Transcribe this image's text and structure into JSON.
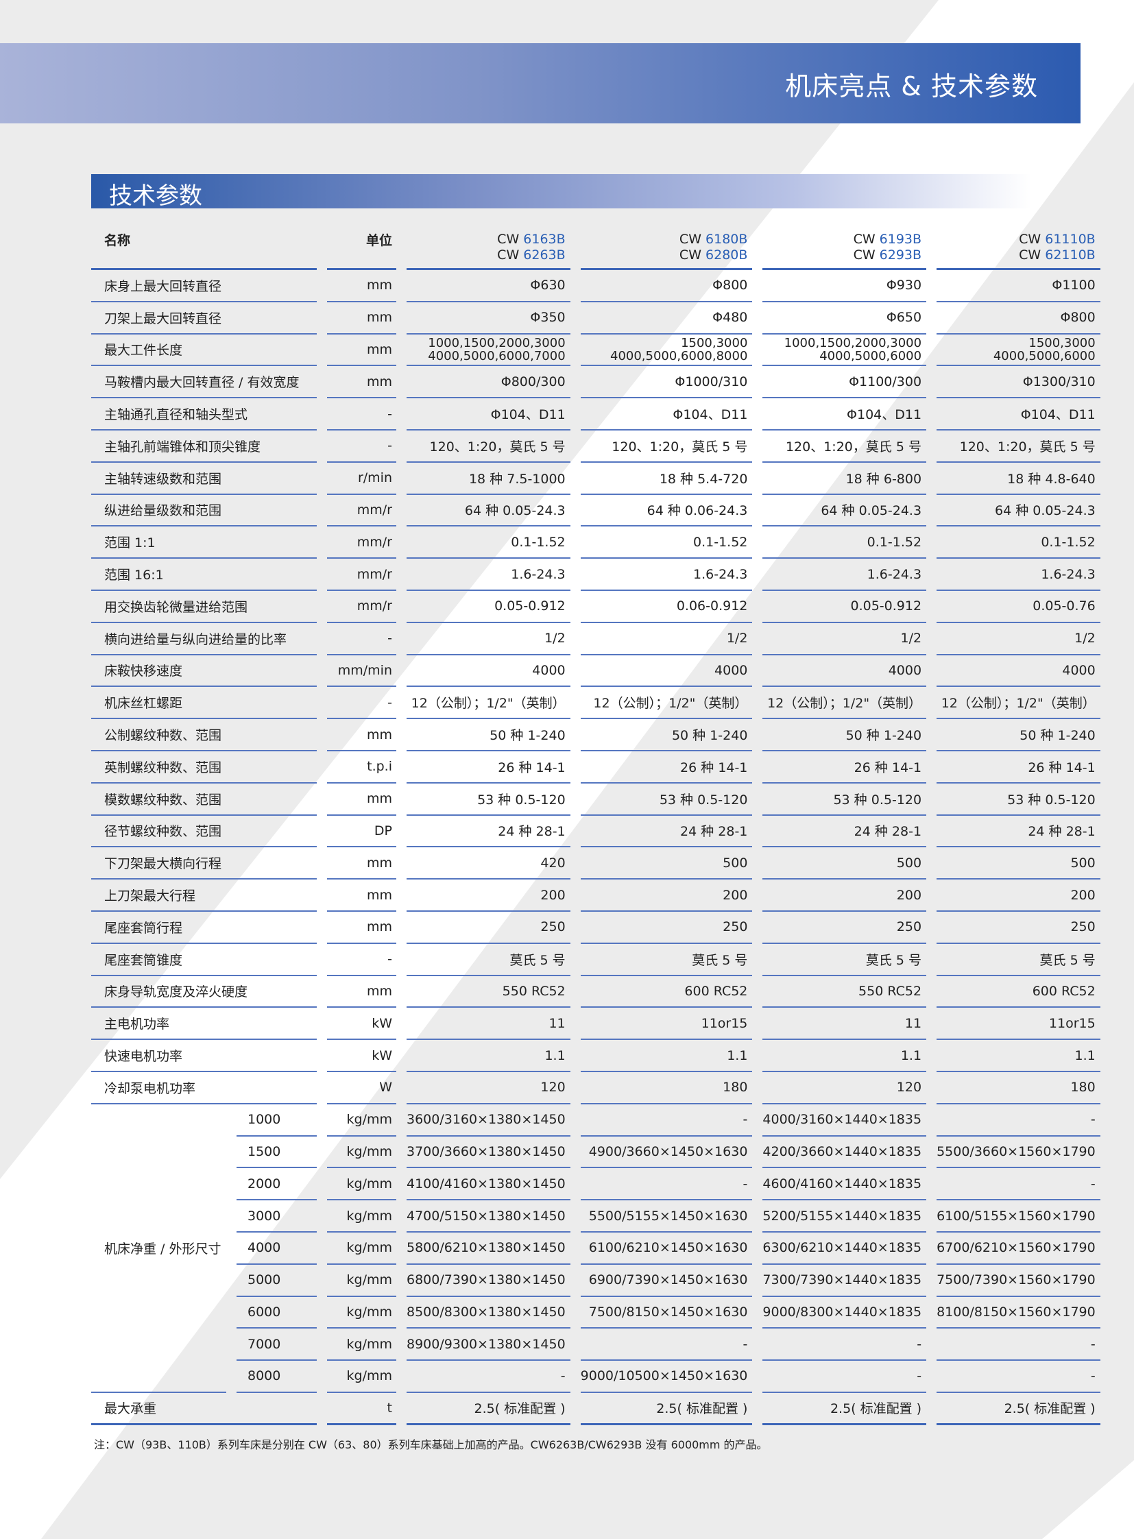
{
  "header": {
    "title": "机床亮点 & 技术参数"
  },
  "section": {
    "title": "技术参数"
  },
  "table": {
    "head": {
      "name": "名称",
      "unit": "单位",
      "models": [
        {
          "l1p": "CW ",
          "l1n": "6163B",
          "l2p": "CW ",
          "l2n": "6263B"
        },
        {
          "l1p": "CW ",
          "l1n": "6180B",
          "l2p": "CW ",
          "l2n": "6280B"
        },
        {
          "l1p": "CW ",
          "l1n": "6193B",
          "l2p": "CW ",
          "l2n": "6293B"
        },
        {
          "l1p": "CW ",
          "l1n": "61110B",
          "l2p": "CW ",
          "l2n": "62110B"
        }
      ]
    },
    "rows": [
      {
        "name": "床身上最大回转直径",
        "unit": "mm",
        "v": [
          "Φ630",
          "Φ800",
          "Φ930",
          "Φ1100"
        ]
      },
      {
        "name": "刀架上最大回转直径",
        "unit": "mm",
        "v": [
          "Φ350",
          "Φ480",
          "Φ650",
          "Φ800"
        ]
      },
      {
        "name": "最大工件长度",
        "unit": "mm",
        "v": [
          [
            "1000,1500,2000,3000",
            "4000,5000,6000,7000"
          ],
          [
            "1500,3000",
            "4000,5000,6000,8000"
          ],
          [
            "1000,1500,2000,3000",
            "4000,5000,6000"
          ],
          [
            "1500,3000",
            "4000,5000,6000"
          ]
        ]
      },
      {
        "name": "马鞍槽内最大回转直径 / 有效宽度",
        "unit": "mm",
        "v": [
          "Φ800/300",
          "Φ1000/310",
          "Φ1100/300",
          "Φ1300/310"
        ]
      },
      {
        "name": "主轴通孔直径和轴头型式",
        "unit": "-",
        "v": [
          "Φ104、D11",
          "Φ104、D11",
          "Φ104、D11",
          "Φ104、D11"
        ]
      },
      {
        "name": "主轴孔前端锥体和顶尖锥度",
        "unit": "-",
        "v": [
          "120、1:20，莫氏 5 号",
          "120、1:20，莫氏 5 号",
          "120、1:20，莫氏 5 号",
          "120、1:20，莫氏 5 号"
        ]
      },
      {
        "name": "主轴转速级数和范围",
        "unit": "r/min",
        "v": [
          "18 种 7.5-1000",
          "18 种 5.4-720",
          "18 种 6-800",
          "18 种 4.8-640"
        ]
      },
      {
        "name": "纵进给量级数和范围",
        "unit": "mm/r",
        "v": [
          "64 种 0.05-24.3",
          "64 种 0.06-24.3",
          "64 种 0.05-24.3",
          "64 种 0.05-24.3"
        ]
      },
      {
        "name": "范围 1:1",
        "unit": "mm/r",
        "v": [
          "0.1-1.52",
          "0.1-1.52",
          "0.1-1.52",
          "0.1-1.52"
        ]
      },
      {
        "name": "范围 16:1",
        "unit": "mm/r",
        "v": [
          "1.6-24.3",
          "1.6-24.3",
          "1.6-24.3",
          "1.6-24.3"
        ]
      },
      {
        "name": "用交换齿轮微量进给范围",
        "unit": "mm/r",
        "v": [
          "0.05-0.912",
          "0.06-0.912",
          "0.05-0.912",
          "0.05-0.76"
        ]
      },
      {
        "name": "横向进给量与纵向进给量的比率",
        "unit": "-",
        "v": [
          "1/2",
          "1/2",
          "1/2",
          "1/2"
        ]
      },
      {
        "name": "床鞍快移速度",
        "unit": "mm/min",
        "v": [
          "4000",
          "4000",
          "4000",
          "4000"
        ]
      },
      {
        "name": "机床丝杠螺距",
        "unit": "-",
        "v": [
          "12（公制）；1/2\"（英制）",
          "12（公制）；1/2\"（英制）",
          "12（公制）；1/2\"（英制）",
          "12（公制）；1/2\"（英制）"
        ]
      },
      {
        "name": "公制螺纹种数、范围",
        "unit": "mm",
        "v": [
          "50 种 1-240",
          "50 种 1-240",
          "50 种 1-240",
          "50 种 1-240"
        ]
      },
      {
        "name": "英制螺纹种数、范围",
        "unit": "t.p.i",
        "v": [
          "26 种 14-1",
          "26 种 14-1",
          "26 种 14-1",
          "26 种 14-1"
        ]
      },
      {
        "name": "模数螺纹种数、范围",
        "unit": "mm",
        "v": [
          "53 种 0.5-120",
          "53 种 0.5-120",
          "53 种 0.5-120",
          "53 种 0.5-120"
        ]
      },
      {
        "name": "径节螺纹种数、范围",
        "unit": "DP",
        "v": [
          "24 种 28-1",
          "24 种 28-1",
          "24 种 28-1",
          "24 种 28-1"
        ]
      },
      {
        "name": "下刀架最大横向行程",
        "unit": "mm",
        "v": [
          "420",
          "500",
          "500",
          "500"
        ]
      },
      {
        "name": "上刀架最大行程",
        "unit": "mm",
        "v": [
          "200",
          "200",
          "200",
          "200"
        ]
      },
      {
        "name": "尾座套筒行程",
        "unit": "mm",
        "v": [
          "250",
          "250",
          "250",
          "250"
        ]
      },
      {
        "name": "尾座套筒锥度",
        "unit": "-",
        "v": [
          "莫氏 5 号",
          "莫氏 5 号",
          "莫氏 5 号",
          "莫氏 5 号"
        ]
      },
      {
        "name": "床身导轨宽度及淬火硬度",
        "unit": "mm",
        "v": [
          "550 RC52",
          "600 RC52",
          "550 RC52",
          "600 RC52"
        ]
      },
      {
        "name": "主电机功率",
        "unit": "kW",
        "v": [
          "11",
          "11or15",
          "11",
          "11or15"
        ]
      },
      {
        "name": "快速电机功率",
        "unit": "kW",
        "v": [
          "1.1",
          "1.1",
          "1.1",
          "1.1"
        ]
      },
      {
        "name": "冷却泵电机功率",
        "unit": "W",
        "v": [
          "120",
          "180",
          "120",
          "180"
        ]
      }
    ],
    "weight": {
      "name": "机床净重 / 外形尺寸",
      "rows": [
        {
          "len": "1000",
          "unit": "kg/mm",
          "v": [
            "3600/3160×1380×1450",
            "-",
            "4000/3160×1440×1835",
            "-"
          ]
        },
        {
          "len": "1500",
          "unit": "kg/mm",
          "v": [
            "3700/3660×1380×1450",
            "4900/3660×1450×1630",
            "4200/3660×1440×1835",
            "5500/3660×1560×1790"
          ]
        },
        {
          "len": "2000",
          "unit": "kg/mm",
          "v": [
            "4100/4160×1380×1450",
            "-",
            "4600/4160×1440×1835",
            "-"
          ]
        },
        {
          "len": "3000",
          "unit": "kg/mm",
          "v": [
            "4700/5150×1380×1450",
            "5500/5155×1450×1630",
            "5200/5155×1440×1835",
            "6100/5155×1560×1790"
          ]
        },
        {
          "len": "4000",
          "unit": "kg/mm",
          "v": [
            "5800/6210×1380×1450",
            "6100/6210×1450×1630",
            "6300/6210×1440×1835",
            "6700/6210×1560×1790"
          ]
        },
        {
          "len": "5000",
          "unit": "kg/mm",
          "v": [
            "6800/7390×1380×1450",
            "6900/7390×1450×1630",
            "7300/7390×1440×1835",
            "7500/7390×1560×1790"
          ]
        },
        {
          "len": "6000",
          "unit": "kg/mm",
          "v": [
            "8500/8300×1380×1450",
            "7500/8150×1450×1630",
            "9000/8300×1440×1835",
            "8100/8150×1560×1790"
          ]
        },
        {
          "len": "7000",
          "unit": "kg/mm",
          "v": [
            "8900/9300×1380×1450",
            "-",
            "-",
            "-"
          ]
        },
        {
          "len": "8000",
          "unit": "kg/mm",
          "v": [
            "-",
            "9000/10500×1450×1630",
            "-",
            "-"
          ]
        }
      ]
    },
    "last": {
      "name": "最大承重",
      "unit": "t",
      "v": [
        "2.5( 标准配置 )",
        "2.5( 标准配置 )",
        "2.5( 标准配置 )",
        "2.5( 标准配置 )"
      ]
    }
  },
  "note": "注：CW（93B、110B）系列车床是分别在 CW（63、80）系列车床基础上加高的产品。CW6263B/CW6293B 没有 6000mm 的产品。",
  "colors": {
    "accent": "#2a5fb5",
    "rule": "#5576c0",
    "background": "#ececec"
  }
}
